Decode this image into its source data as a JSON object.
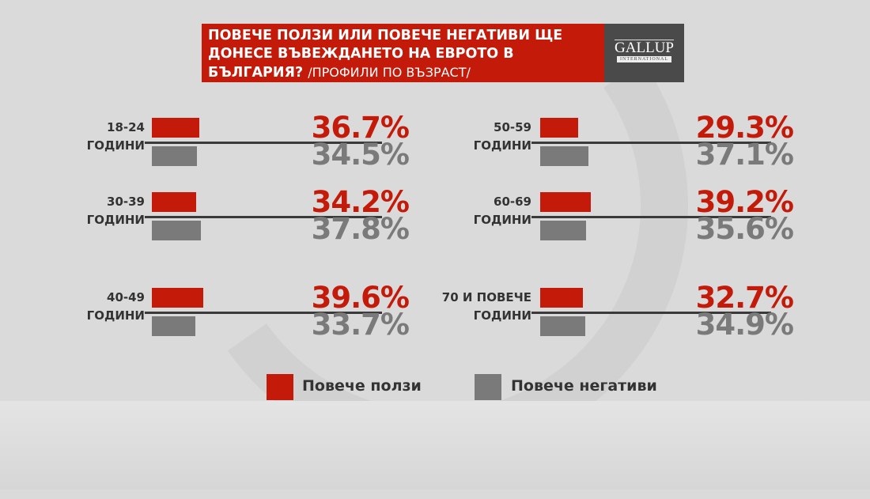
{
  "header": {
    "title": "ПОВЕЧЕ ПОЛЗИ ИЛИ ПОВЕЧЕ НЕГАТИВИ ЩЕ ДОНЕСЕ ВЪВЕЖДАНЕТО НА ЕВРОТО В БЪЛГАРИЯ?",
    "subtitle": "/ПРОФИЛИ ПО ВЪЗРАСТ/",
    "logo": "GALLUP INTERNATIONAL"
  },
  "colors": {
    "benefits": "#c31a0a",
    "negatives": "#7a7a7a"
  },
  "chart_data": {
    "type": "bar",
    "categories": [
      [
        "18-24",
        "ГОДИНИ"
      ],
      [
        "30-39",
        "ГОДИНИ"
      ],
      [
        "40-49",
        "ГОДИНИ"
      ],
      [
        "50-59",
        "ГОДИНИ"
      ],
      [
        "60-69",
        "ГОДИНИ"
      ],
      [
        "70 И ПОВЕЧЕ",
        "ГОДИНИ"
      ]
    ],
    "series": [
      {
        "name": "Повече ползи",
        "values": [
          36.7,
          34.2,
          39.6,
          29.3,
          39.2,
          32.7
        ],
        "labels": [
          "36.7%",
          "34.2%",
          "39.6%",
          "29.3%",
          "39.2%",
          "32.7%"
        ]
      },
      {
        "name": "Повече негативи",
        "values": [
          34.5,
          37.8,
          33.7,
          37.1,
          35.6,
          34.9
        ],
        "labels": [
          "34.5%",
          "37.8%",
          "33.7%",
          "37.1%",
          "35.6%",
          "34.9%"
        ]
      }
    ],
    "legend": "bottom"
  }
}
